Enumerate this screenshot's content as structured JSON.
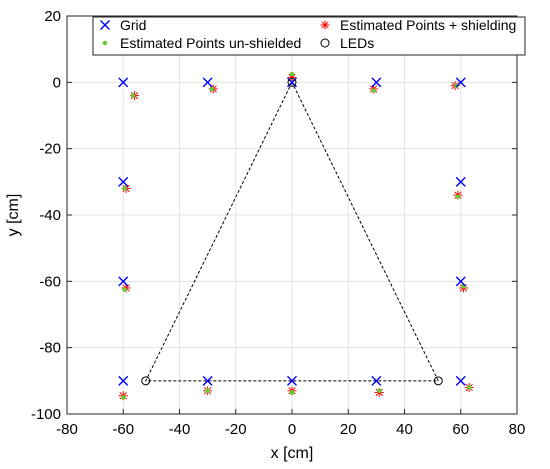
{
  "chart_data": {
    "type": "scatter",
    "title": "",
    "xlabel": "x [cm]",
    "ylabel": "y [cm]",
    "xlim": [
      -80,
      80
    ],
    "ylim": [
      -100,
      20
    ],
    "xticks": [
      -80,
      -60,
      -40,
      -20,
      0,
      20,
      40,
      60,
      80
    ],
    "yticks": [
      -100,
      -80,
      -60,
      -40,
      -20,
      0,
      20
    ],
    "grid": true,
    "legend_placement": "top",
    "series": [
      {
        "name": "Grid",
        "marker": "x",
        "color": "#0000ff",
        "points": [
          [
            -60,
            0
          ],
          [
            -30,
            0
          ],
          [
            0,
            0
          ],
          [
            30,
            0
          ],
          [
            60,
            0
          ],
          [
            -60,
            -30
          ],
          [
            60,
            -30
          ],
          [
            -60,
            -60
          ],
          [
            60,
            -60
          ],
          [
            -60,
            -90
          ],
          [
            -30,
            -90
          ],
          [
            0,
            -90
          ],
          [
            30,
            -90
          ],
          [
            60,
            -90
          ]
        ]
      },
      {
        "name": "Estimated Points + shielding",
        "marker": "asterisk",
        "color": "#ff0000",
        "points": [
          [
            -56,
            -4
          ],
          [
            -28,
            -2
          ],
          [
            0,
            1.5
          ],
          [
            29,
            -2
          ],
          [
            58,
            -1
          ],
          [
            -59,
            -32
          ],
          [
            59,
            -34
          ],
          [
            -59,
            -62
          ],
          [
            61,
            -62
          ],
          [
            -60,
            -94.5
          ],
          [
            -30,
            -93
          ],
          [
            0,
            -93
          ],
          [
            31,
            -93.5
          ],
          [
            63,
            -92
          ]
        ]
      },
      {
        "name": "Estimated Points un-shielded",
        "marker": "dot",
        "color": "#66cc33",
        "points": [
          [
            -56.5,
            -4
          ],
          [
            -28.5,
            -2
          ],
          [
            0,
            2.5
          ],
          [
            29,
            -2.5
          ],
          [
            58.5,
            -1
          ],
          [
            -59.5,
            -32
          ],
          [
            59,
            -34.5
          ],
          [
            -59.5,
            -62.5
          ],
          [
            61,
            -61.5
          ],
          [
            -60,
            -95
          ],
          [
            -30,
            -93
          ],
          [
            0,
            -93.5
          ],
          [
            31,
            -93
          ],
          [
            63,
            -92
          ]
        ]
      },
      {
        "name": "LEDs",
        "marker": "circle",
        "color": "#000000",
        "points": [
          [
            0,
            0
          ],
          [
            -52,
            -90
          ],
          [
            52,
            -90
          ]
        ]
      }
    ],
    "outline": {
      "style": "dashed",
      "color": "#000000",
      "points": [
        [
          0,
          0
        ],
        [
          -52,
          -90
        ],
        [
          52,
          -90
        ],
        [
          0,
          0
        ]
      ]
    }
  }
}
